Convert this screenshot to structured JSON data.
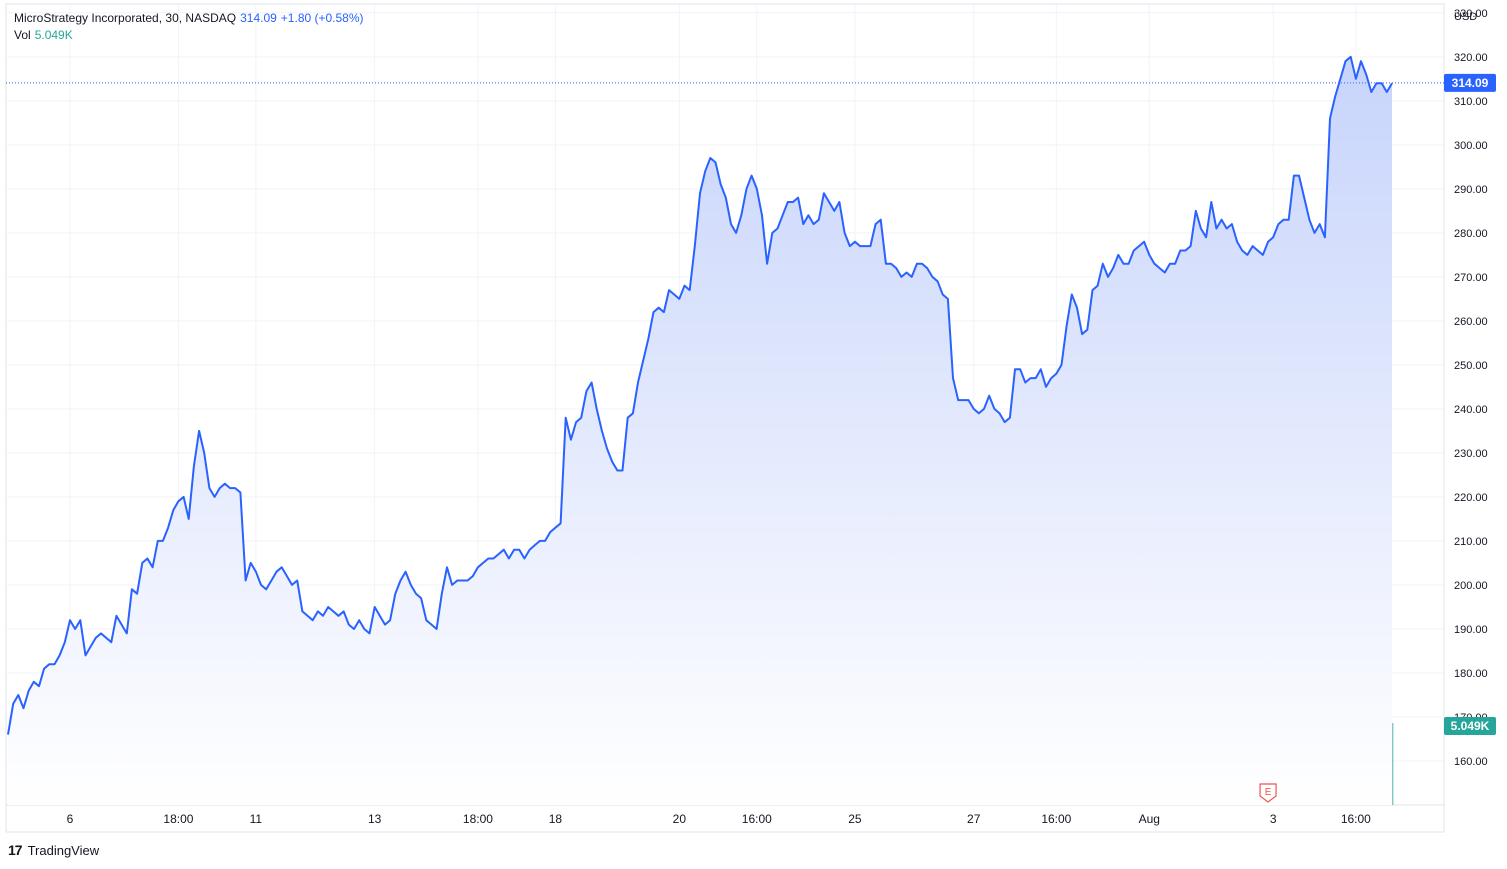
{
  "legend": {
    "symbol": "MicroStrategy Incorporated, 30, NASDAQ",
    "last": "314.09",
    "change": "+1.80 (+0.58%)",
    "vol_label": "Vol",
    "vol_value": "5.049K"
  },
  "footer": {
    "brand": "TradingView"
  },
  "colors": {
    "line": "#2962ff",
    "area_top": "#c7d4fb",
    "area_bottom": "#ffffff",
    "vol_up": "#26a69a",
    "vol_down": "#ef5350",
    "grid": "#f0f3fa",
    "text": "#131722"
  },
  "chart_data": {
    "type": "area",
    "currency": "USD",
    "y_range": [
      150,
      332
    ],
    "y_ticks": [
      160,
      170,
      180,
      190,
      200,
      210,
      220,
      230,
      240,
      250,
      260,
      270,
      280,
      290,
      300,
      310,
      320,
      330
    ],
    "y_tick_labels": [
      "160.00",
      "170.00",
      "180.00",
      "190.00",
      "200.00",
      "210.00",
      "220.00",
      "230.00",
      "240.00",
      "250.00",
      "260.00",
      "270.00",
      "280.00",
      "290.00",
      "300.00",
      "310.00",
      "320.00",
      "330.00"
    ],
    "x_ticks": [
      {
        "label": "6",
        "index": 12
      },
      {
        "label": "18:00",
        "index": 33
      },
      {
        "label": "11",
        "index": 48
      },
      {
        "label": "13",
        "index": 71
      },
      {
        "label": "18:00",
        "index": 91
      },
      {
        "label": "18",
        "index": 106
      },
      {
        "label": "20",
        "index": 130
      },
      {
        "label": "16:00",
        "index": 145
      },
      {
        "label": "25",
        "index": 164
      },
      {
        "label": "27",
        "index": 187
      },
      {
        "label": "16:00",
        "index": 203
      },
      {
        "label": "Aug",
        "index": 221
      },
      {
        "label": "3",
        "index": 245
      },
      {
        "label": "16:00",
        "index": 261
      }
    ],
    "last_price": 314.09,
    "last_price_label": "314.09",
    "last_volume_label": "5.049K",
    "earnings_marker": {
      "label": "E",
      "index": 244
    },
    "price_anchors": [
      [
        0,
        166
      ],
      [
        1,
        173
      ],
      [
        2,
        175
      ],
      [
        3,
        172
      ],
      [
        4,
        176
      ],
      [
        5,
        178
      ],
      [
        6,
        177
      ],
      [
        7,
        181
      ],
      [
        8,
        182
      ],
      [
        9,
        182
      ],
      [
        10,
        184
      ],
      [
        11,
        187
      ],
      [
        12,
        192
      ],
      [
        13,
        190
      ],
      [
        14,
        192
      ],
      [
        15,
        184
      ],
      [
        16,
        186
      ],
      [
        17,
        188
      ],
      [
        18,
        189
      ],
      [
        19,
        188
      ],
      [
        20,
        187
      ],
      [
        21,
        193
      ],
      [
        22,
        191
      ],
      [
        23,
        189
      ],
      [
        24,
        199
      ],
      [
        25,
        198
      ],
      [
        26,
        205
      ],
      [
        27,
        206
      ],
      [
        28,
        204
      ],
      [
        29,
        210
      ],
      [
        30,
        210
      ],
      [
        31,
        213
      ],
      [
        32,
        217
      ],
      [
        33,
        219
      ],
      [
        34,
        220
      ],
      [
        35,
        215
      ],
      [
        36,
        227
      ],
      [
        37,
        235
      ],
      [
        38,
        230
      ],
      [
        39,
        222
      ],
      [
        40,
        220
      ],
      [
        41,
        222
      ],
      [
        42,
        223
      ],
      [
        43,
        222
      ],
      [
        44,
        222
      ],
      [
        45,
        221
      ],
      [
        46,
        201
      ],
      [
        47,
        205
      ],
      [
        48,
        203
      ],
      [
        49,
        200
      ],
      [
        50,
        199
      ],
      [
        51,
        201
      ],
      [
        52,
        203
      ],
      [
        53,
        204
      ],
      [
        54,
        202
      ],
      [
        55,
        200
      ],
      [
        56,
        201
      ],
      [
        57,
        194
      ],
      [
        58,
        193
      ],
      [
        59,
        192
      ],
      [
        60,
        194
      ],
      [
        61,
        193
      ],
      [
        62,
        195
      ],
      [
        63,
        194
      ],
      [
        64,
        193
      ],
      [
        65,
        194
      ],
      [
        66,
        191
      ],
      [
        67,
        190
      ],
      [
        68,
        192
      ],
      [
        69,
        190
      ],
      [
        70,
        189
      ],
      [
        71,
        195
      ],
      [
        72,
        193
      ],
      [
        73,
        191
      ],
      [
        74,
        192
      ],
      [
        75,
        198
      ],
      [
        76,
        201
      ],
      [
        77,
        203
      ],
      [
        78,
        200
      ],
      [
        79,
        198
      ],
      [
        80,
        197
      ],
      [
        81,
        192
      ],
      [
        82,
        191
      ],
      [
        83,
        190
      ],
      [
        84,
        198
      ],
      [
        85,
        204
      ],
      [
        86,
        200
      ],
      [
        87,
        201
      ],
      [
        88,
        201
      ],
      [
        89,
        201
      ],
      [
        90,
        202
      ],
      [
        91,
        204
      ],
      [
        92,
        205
      ],
      [
        93,
        206
      ],
      [
        94,
        206
      ],
      [
        95,
        207
      ],
      [
        96,
        208
      ],
      [
        97,
        206
      ],
      [
        98,
        208
      ],
      [
        99,
        208
      ],
      [
        100,
        206
      ],
      [
        101,
        208
      ],
      [
        102,
        209
      ],
      [
        103,
        210
      ],
      [
        104,
        210
      ],
      [
        105,
        212
      ],
      [
        106,
        213
      ],
      [
        107,
        214
      ],
      [
        108,
        238
      ],
      [
        109,
        233
      ],
      [
        110,
        237
      ],
      [
        111,
        238
      ],
      [
        112,
        244
      ],
      [
        113,
        246
      ],
      [
        114,
        240
      ],
      [
        115,
        235
      ],
      [
        116,
        231
      ],
      [
        117,
        228
      ],
      [
        118,
        226
      ],
      [
        119,
        226
      ],
      [
        120,
        238
      ],
      [
        121,
        239
      ],
      [
        122,
        246
      ],
      [
        123,
        251
      ],
      [
        124,
        256
      ],
      [
        125,
        262
      ],
      [
        126,
        263
      ],
      [
        127,
        262
      ],
      [
        128,
        267
      ],
      [
        129,
        266
      ],
      [
        130,
        265
      ],
      [
        131,
        268
      ],
      [
        132,
        267
      ],
      [
        133,
        277
      ],
      [
        134,
        289
      ],
      [
        135,
        294
      ],
      [
        136,
        297
      ],
      [
        137,
        296
      ],
      [
        138,
        291
      ],
      [
        139,
        288
      ],
      [
        140,
        282
      ],
      [
        141,
        280
      ],
      [
        142,
        284
      ],
      [
        143,
        290
      ],
      [
        144,
        293
      ],
      [
        145,
        290
      ],
      [
        146,
        284
      ],
      [
        147,
        273
      ],
      [
        148,
        280
      ],
      [
        149,
        281
      ],
      [
        150,
        284
      ],
      [
        151,
        287
      ],
      [
        152,
        287
      ],
      [
        153,
        288
      ],
      [
        154,
        282
      ],
      [
        155,
        284
      ],
      [
        156,
        282
      ],
      [
        157,
        283
      ],
      [
        158,
        289
      ],
      [
        159,
        287
      ],
      [
        160,
        285
      ],
      [
        161,
        287
      ],
      [
        162,
        280
      ],
      [
        163,
        277
      ],
      [
        164,
        278
      ],
      [
        165,
        277
      ],
      [
        166,
        277
      ],
      [
        167,
        277
      ],
      [
        168,
        282
      ],
      [
        169,
        283
      ],
      [
        170,
        273
      ],
      [
        171,
        273
      ],
      [
        172,
        272
      ],
      [
        173,
        270
      ],
      [
        174,
        271
      ],
      [
        175,
        270
      ],
      [
        176,
        273
      ],
      [
        177,
        273
      ],
      [
        178,
        272
      ],
      [
        179,
        270
      ],
      [
        180,
        269
      ],
      [
        181,
        266
      ],
      [
        182,
        265
      ],
      [
        183,
        247
      ],
      [
        184,
        242
      ],
      [
        185,
        242
      ],
      [
        186,
        242
      ],
      [
        187,
        240
      ],
      [
        188,
        239
      ],
      [
        189,
        240
      ],
      [
        190,
        243
      ],
      [
        191,
        240
      ],
      [
        192,
        239
      ],
      [
        193,
        237
      ],
      [
        194,
        238
      ],
      [
        195,
        249
      ],
      [
        196,
        249
      ],
      [
        197,
        246
      ],
      [
        198,
        247
      ],
      [
        199,
        247
      ],
      [
        200,
        249
      ],
      [
        201,
        245
      ],
      [
        202,
        247
      ],
      [
        203,
        248
      ],
      [
        204,
        250
      ],
      [
        205,
        259
      ],
      [
        206,
        266
      ],
      [
        207,
        263
      ],
      [
        208,
        257
      ],
      [
        209,
        258
      ],
      [
        210,
        267
      ],
      [
        211,
        268
      ],
      [
        212,
        273
      ],
      [
        213,
        270
      ],
      [
        214,
        272
      ],
      [
        215,
        275
      ],
      [
        216,
        273
      ],
      [
        217,
        273
      ],
      [
        218,
        276
      ],
      [
        219,
        277
      ],
      [
        220,
        278
      ],
      [
        221,
        275
      ],
      [
        222,
        273
      ],
      [
        223,
        272
      ],
      [
        224,
        271
      ],
      [
        225,
        273
      ],
      [
        226,
        273
      ],
      [
        227,
        276
      ],
      [
        228,
        276
      ],
      [
        229,
        277
      ],
      [
        230,
        285
      ],
      [
        231,
        281
      ],
      [
        232,
        279
      ],
      [
        233,
        287
      ],
      [
        234,
        281
      ],
      [
        235,
        283
      ],
      [
        236,
        281
      ],
      [
        237,
        282
      ],
      [
        238,
        278
      ],
      [
        239,
        276
      ],
      [
        240,
        275
      ],
      [
        241,
        277
      ],
      [
        242,
        276
      ],
      [
        243,
        275
      ],
      [
        244,
        278
      ],
      [
        245,
        279
      ],
      [
        246,
        282
      ],
      [
        247,
        283
      ],
      [
        248,
        283
      ],
      [
        249,
        293
      ],
      [
        250,
        293
      ],
      [
        251,
        288
      ],
      [
        252,
        283
      ],
      [
        253,
        280
      ],
      [
        254,
        282
      ],
      [
        255,
        279
      ],
      [
        256,
        306
      ],
      [
        257,
        311
      ],
      [
        258,
        315
      ],
      [
        259,
        319
      ],
      [
        260,
        320
      ],
      [
        261,
        315
      ],
      [
        262,
        319
      ],
      [
        263,
        316
      ],
      [
        264,
        312
      ],
      [
        265,
        314
      ],
      [
        266,
        314
      ],
      [
        267,
        312
      ],
      [
        268,
        314
      ]
    ]
  }
}
